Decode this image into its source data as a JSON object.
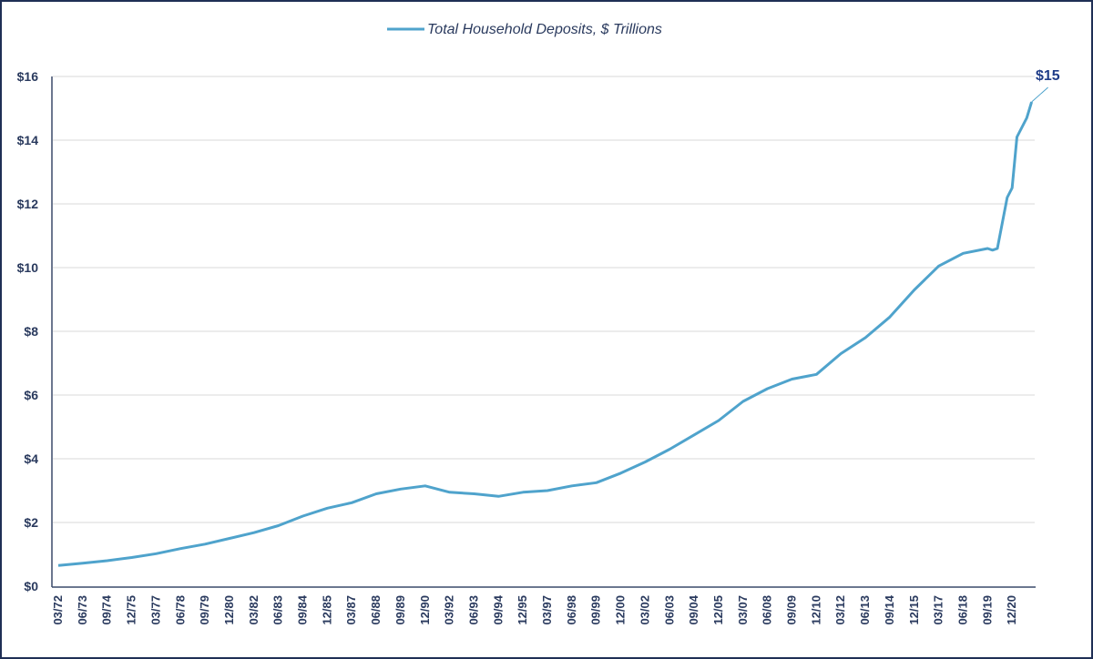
{
  "chart_data": {
    "type": "line",
    "title": "",
    "xlabel": "",
    "ylabel": "",
    "ylim": [
      0,
      16
    ],
    "y_tick_step": 2,
    "y_tick_labels": [
      "$0",
      "$2",
      "$4",
      "$6",
      "$8",
      "$10",
      "$12",
      "$14",
      "$16"
    ],
    "x_tick_labels": [
      "03/72",
      "06/73",
      "09/74",
      "12/75",
      "03/77",
      "06/78",
      "09/79",
      "12/80",
      "03/82",
      "06/83",
      "09/84",
      "12/85",
      "03/87",
      "06/88",
      "09/89",
      "12/90",
      "03/92",
      "06/93",
      "09/94",
      "12/95",
      "03/97",
      "06/98",
      "09/99",
      "12/00",
      "03/02",
      "06/03",
      "09/04",
      "12/05",
      "03/07",
      "06/08",
      "09/09",
      "12/10",
      "03/12",
      "06/13",
      "09/14",
      "12/15",
      "03/17",
      "06/18",
      "09/19",
      "12/20"
    ],
    "grid": "horizontal",
    "legend_position": "top",
    "series": [
      {
        "name": "Total Household Deposits, $ Trillions",
        "color": "#4fa3cc",
        "x": [
          "03/72",
          "06/73",
          "09/74",
          "12/75",
          "03/77",
          "06/78",
          "09/79",
          "12/80",
          "03/82",
          "06/83",
          "09/84",
          "12/85",
          "03/87",
          "06/88",
          "09/89",
          "12/90",
          "03/92",
          "06/93",
          "09/94",
          "12/95",
          "03/97",
          "06/98",
          "09/99",
          "12/00",
          "03/02",
          "06/03",
          "09/04",
          "12/05",
          "03/07",
          "06/08",
          "09/09",
          "12/10",
          "03/12",
          "06/13",
          "09/14",
          "12/15",
          "03/17",
          "06/18",
          "09/19",
          "12/19",
          "03/20",
          "06/20",
          "09/20",
          "12/20",
          "03/21",
          "06/21",
          "09/21",
          "12/21"
        ],
        "y": [
          0.65,
          0.72,
          0.8,
          0.9,
          1.02,
          1.18,
          1.32,
          1.5,
          1.68,
          1.9,
          2.2,
          2.45,
          2.62,
          2.9,
          3.05,
          3.15,
          2.95,
          2.9,
          2.82,
          2.95,
          3.0,
          3.15,
          3.25,
          3.55,
          3.9,
          4.3,
          4.75,
          5.2,
          5.8,
          6.2,
          6.5,
          6.65,
          7.3,
          7.8,
          8.45,
          9.3,
          10.05,
          10.45,
          10.6,
          10.55,
          10.6,
          11.4,
          12.2,
          12.5,
          14.1,
          14.4,
          14.7,
          15.2
        ]
      }
    ],
    "annotations": [
      {
        "text": "$15",
        "x": "12/21",
        "y": 15.2
      }
    ]
  },
  "colors": {
    "line": "#4fa3cc",
    "text": "#2a3a5e",
    "annotation": "#1f3c88",
    "grid": "#e6e6e6",
    "axis": "#3a4a6a"
  }
}
